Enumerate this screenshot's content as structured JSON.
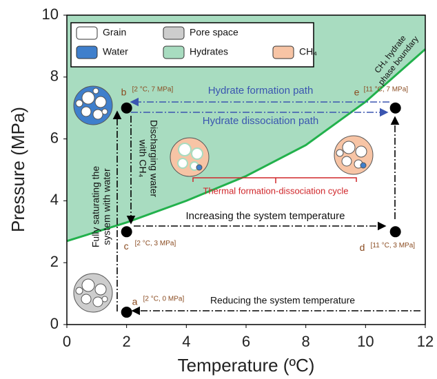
{
  "chart_data": {
    "type": "scatter",
    "x_label": "Temperature (ºC)",
    "y_label": "Pressure (MPa)",
    "xlim": [
      0,
      12
    ],
    "ylim": [
      0,
      10
    ],
    "xticks": [
      0,
      2,
      4,
      6,
      8,
      10,
      12
    ],
    "yticks": [
      0,
      2,
      4,
      6,
      8,
      10
    ],
    "boundary": {
      "name": [
        "CH₄ hydrate",
        "phase boundary"
      ],
      "color": "#22b14c",
      "fill": "#a8dcc0",
      "x": [
        0,
        2,
        4,
        6,
        8,
        10,
        12
      ],
      "y": [
        2.7,
        3.3,
        4.0,
        4.8,
        5.8,
        7.2,
        8.9
      ]
    },
    "points": {
      "color": "#000000",
      "x": [
        2,
        2,
        2,
        11,
        11
      ],
      "y": [
        0.4,
        7,
        3,
        3,
        7
      ],
      "labels": [
        "a",
        "b",
        "c",
        "d",
        "e"
      ],
      "coords": [
        "[2 °C, 0 MPa]",
        "[2 °C, 7 MPa]",
        "[2 °C, 3 MPa]",
        "[11 °C, 3 MPa]",
        "[11 °C, 7 MPa]"
      ]
    },
    "legend": [
      {
        "name": "Grain",
        "color": "#ffffff"
      },
      {
        "name": "Pore space",
        "color": "#cdcdcd"
      },
      {
        "name": "Water",
        "color": "#3f7fcc"
      },
      {
        "name": "Hydrates",
        "color": "#a8dcc0"
      },
      {
        "name": "CH₄",
        "color": "#f7c4a5"
      }
    ],
    "annotations": {
      "formation": "Hydrate formation path",
      "dissociation": "Hydrate dissociation path",
      "increasing": "Increasing the system temperature",
      "reducing": "Reducing the system temperature",
      "saturating": [
        "Fully saturating the",
        "system with water"
      ],
      "discharging": [
        "Discharging water",
        "with CH₄"
      ],
      "cycle": "Thermal formation-dissociation cycle"
    }
  }
}
